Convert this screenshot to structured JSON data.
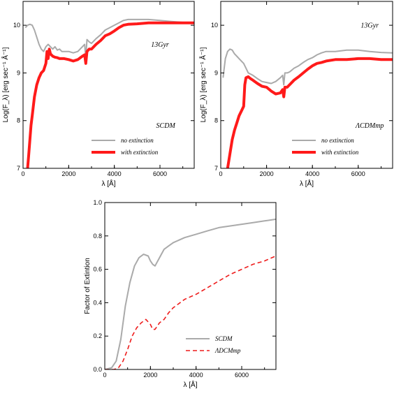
{
  "chart_data": [
    {
      "type": "line",
      "id": "panel-scdm",
      "title": "",
      "xlabel": "λ [Å]",
      "ylabel": "Log(F_λ) [erg sec⁻¹ Å⁻¹]",
      "xlim": [
        0,
        7500
      ],
      "ylim": [
        7,
        10.5
      ],
      "xticks": [
        0,
        2000,
        4000,
        6000
      ],
      "xtick_labels": [
        "0",
        "2000",
        "4000",
        "6000"
      ],
      "yticks": [
        7,
        8,
        9,
        10
      ],
      "ytick_labels": [
        "7",
        "8",
        "9",
        "10"
      ],
      "annotations": [
        {
          "text": "13Gyr",
          "x": 6000,
          "y": 9.55
        },
        {
          "text": "SCDM",
          "x": 6250,
          "y": 7.85
        }
      ],
      "legend_position": "bottom-right",
      "series": [
        {
          "name": "no extinction",
          "color": "#aaaaaa",
          "width": 2,
          "x": [
            100,
            200,
            300,
            400,
            500,
            600,
            700,
            800,
            900,
            1000,
            1100,
            1200,
            1300,
            1400,
            1500,
            1600,
            1700,
            1800,
            2000,
            2200,
            2400,
            2600,
            2700,
            2750,
            2800,
            2900,
            3000,
            3200,
            3400,
            3600,
            3800,
            4000,
            4200,
            4400,
            4600,
            5000,
            5500,
            6000,
            6500,
            7000,
            7500
          ],
          "y": [
            9.95,
            10.0,
            10.02,
            10.0,
            9.9,
            9.75,
            9.6,
            9.5,
            9.45,
            9.55,
            9.6,
            9.55,
            9.5,
            9.55,
            9.48,
            9.5,
            9.45,
            9.45,
            9.45,
            9.42,
            9.45,
            9.55,
            9.6,
            9.3,
            9.7,
            9.65,
            9.62,
            9.72,
            9.8,
            9.9,
            9.95,
            10.0,
            10.05,
            10.1,
            10.12,
            10.12,
            10.12,
            10.1,
            10.08,
            10.06,
            10.05
          ]
        },
        {
          "name": "with extinction",
          "color": "#ff1a1a",
          "width": 4,
          "x": [
            200,
            250,
            300,
            350,
            400,
            450,
            500,
            600,
            700,
            800,
            900,
            1000,
            1050,
            1100,
            1150,
            1200,
            1300,
            1400,
            1500,
            1600,
            1800,
            2000,
            2200,
            2400,
            2600,
            2700,
            2750,
            2800,
            2900,
            3000,
            3200,
            3400,
            3600,
            3800,
            4000,
            4200,
            4400,
            4600,
            5000,
            5500,
            6000,
            6500,
            7000,
            7500
          ],
          "y": [
            7.0,
            7.3,
            7.6,
            7.9,
            8.1,
            8.3,
            8.5,
            8.75,
            8.9,
            9.0,
            9.05,
            9.2,
            9.45,
            9.3,
            9.5,
            9.4,
            9.35,
            9.33,
            9.32,
            9.3,
            9.3,
            9.28,
            9.25,
            9.28,
            9.35,
            9.38,
            9.2,
            9.45,
            9.5,
            9.5,
            9.6,
            9.68,
            9.78,
            9.82,
            9.88,
            9.95,
            10.0,
            10.02,
            10.03,
            10.05,
            10.05,
            10.05,
            10.05,
            10.05
          ]
        }
      ]
    },
    {
      "type": "line",
      "id": "panel-lcdm",
      "title": "",
      "xlabel": "λ [Å]",
      "ylabel": "Log(F_λ) [erg sec⁻¹ Å⁻¹]",
      "xlim": [
        0,
        7500
      ],
      "ylim": [
        7,
        10.5
      ],
      "xticks": [
        0,
        2000,
        4000,
        6000
      ],
      "xtick_labels": [
        "0",
        "2000",
        "4000",
        "6000"
      ],
      "yticks": [
        7,
        8,
        9,
        10
      ],
      "ytick_labels": [
        "7",
        "8",
        "9",
        "10"
      ],
      "annotations": [
        {
          "text": "13Gyr",
          "x": 6500,
          "y": 9.95
        },
        {
          "text": "ΛCDMmp",
          "x": 6500,
          "y": 7.85
        }
      ],
      "legend_position": "bottom-right",
      "series": [
        {
          "name": "no extinction",
          "color": "#aaaaaa",
          "width": 2,
          "x": [
            100,
            200,
            300,
            400,
            500,
            600,
            700,
            800,
            900,
            1000,
            1100,
            1200,
            1400,
            1600,
            1800,
            2000,
            2200,
            2400,
            2600,
            2700,
            2750,
            2800,
            2900,
            3000,
            3200,
            3400,
            3600,
            3800,
            4000,
            4200,
            4400,
            4600,
            5000,
            5500,
            6000,
            6500,
            7000,
            7500
          ],
          "y": [
            8.9,
            9.3,
            9.45,
            9.5,
            9.48,
            9.4,
            9.35,
            9.3,
            9.25,
            9.2,
            9.1,
            9.0,
            8.95,
            8.88,
            8.82,
            8.8,
            8.78,
            8.82,
            8.9,
            8.95,
            8.75,
            9.0,
            9.0,
            9.02,
            9.1,
            9.15,
            9.22,
            9.28,
            9.32,
            9.38,
            9.42,
            9.45,
            9.45,
            9.48,
            9.48,
            9.45,
            9.43,
            9.42
          ]
        },
        {
          "name": "with extinction",
          "color": "#ff1a1a",
          "width": 4,
          "x": [
            300,
            400,
            500,
            600,
            700,
            800,
            900,
            1000,
            1050,
            1100,
            1200,
            1300,
            1400,
            1600,
            1800,
            2000,
            2200,
            2400,
            2600,
            2700,
            2750,
            2800,
            2900,
            3000,
            3200,
            3400,
            3600,
            3800,
            4000,
            4200,
            4400,
            4600,
            5000,
            5500,
            6000,
            6500,
            7000,
            7500
          ],
          "y": [
            7.0,
            7.3,
            7.6,
            7.8,
            7.95,
            8.1,
            8.2,
            8.3,
            8.75,
            8.9,
            8.92,
            8.88,
            8.85,
            8.78,
            8.72,
            8.7,
            8.62,
            8.56,
            8.58,
            8.65,
            8.5,
            8.7,
            8.7,
            8.75,
            8.85,
            8.92,
            9.0,
            9.08,
            9.15,
            9.2,
            9.22,
            9.25,
            9.28,
            9.28,
            9.3,
            9.3,
            9.28,
            9.28
          ]
        }
      ]
    },
    {
      "type": "line",
      "id": "panel-factor",
      "title": "",
      "xlabel": "λ [Å]",
      "ylabel": "Factor of Extintion",
      "xlim": [
        0,
        7500
      ],
      "ylim": [
        0,
        1.0
      ],
      "xticks": [
        0,
        2000,
        4000,
        6000
      ],
      "xtick_labels": [
        "0",
        "2000",
        "4000",
        "6000"
      ],
      "yticks": [
        0,
        0.2,
        0.4,
        0.6,
        0.8,
        1.0
      ],
      "ytick_labels": [
        "0.0",
        "0.2",
        "0.4",
        "0.6",
        "0.8",
        "1.0"
      ],
      "legend_position": "bottom-right",
      "series": [
        {
          "name": "SCDM",
          "color": "#aaaaaa",
          "width": 2,
          "dash": "",
          "x": [
            0,
            300,
            500,
            700,
            900,
            1100,
            1300,
            1500,
            1700,
            1900,
            2000,
            2100,
            2200,
            2400,
            2600,
            2800,
            3000,
            3500,
            4000,
            4500,
            5000,
            5500,
            6000,
            6500,
            7000,
            7500
          ],
          "y": [
            0.0,
            0.01,
            0.05,
            0.18,
            0.38,
            0.52,
            0.62,
            0.67,
            0.69,
            0.68,
            0.65,
            0.63,
            0.62,
            0.67,
            0.72,
            0.74,
            0.76,
            0.79,
            0.81,
            0.83,
            0.85,
            0.86,
            0.87,
            0.88,
            0.89,
            0.9
          ]
        },
        {
          "name": "ΛDCMmp",
          "color": "#ee1c1c",
          "width": 1.6,
          "dash": "6,4",
          "x": [
            0,
            400,
            600,
            800,
            1000,
            1200,
            1400,
            1600,
            1800,
            2000,
            2100,
            2200,
            2400,
            2600,
            2800,
            3000,
            3500,
            4000,
            4500,
            5000,
            5500,
            6000,
            6500,
            7000,
            7500
          ],
          "y": [
            0.0,
            0.0,
            0.01,
            0.05,
            0.12,
            0.2,
            0.25,
            0.28,
            0.3,
            0.27,
            0.24,
            0.24,
            0.28,
            0.3,
            0.34,
            0.37,
            0.42,
            0.45,
            0.49,
            0.53,
            0.57,
            0.6,
            0.63,
            0.65,
            0.68
          ]
        }
      ]
    }
  ]
}
